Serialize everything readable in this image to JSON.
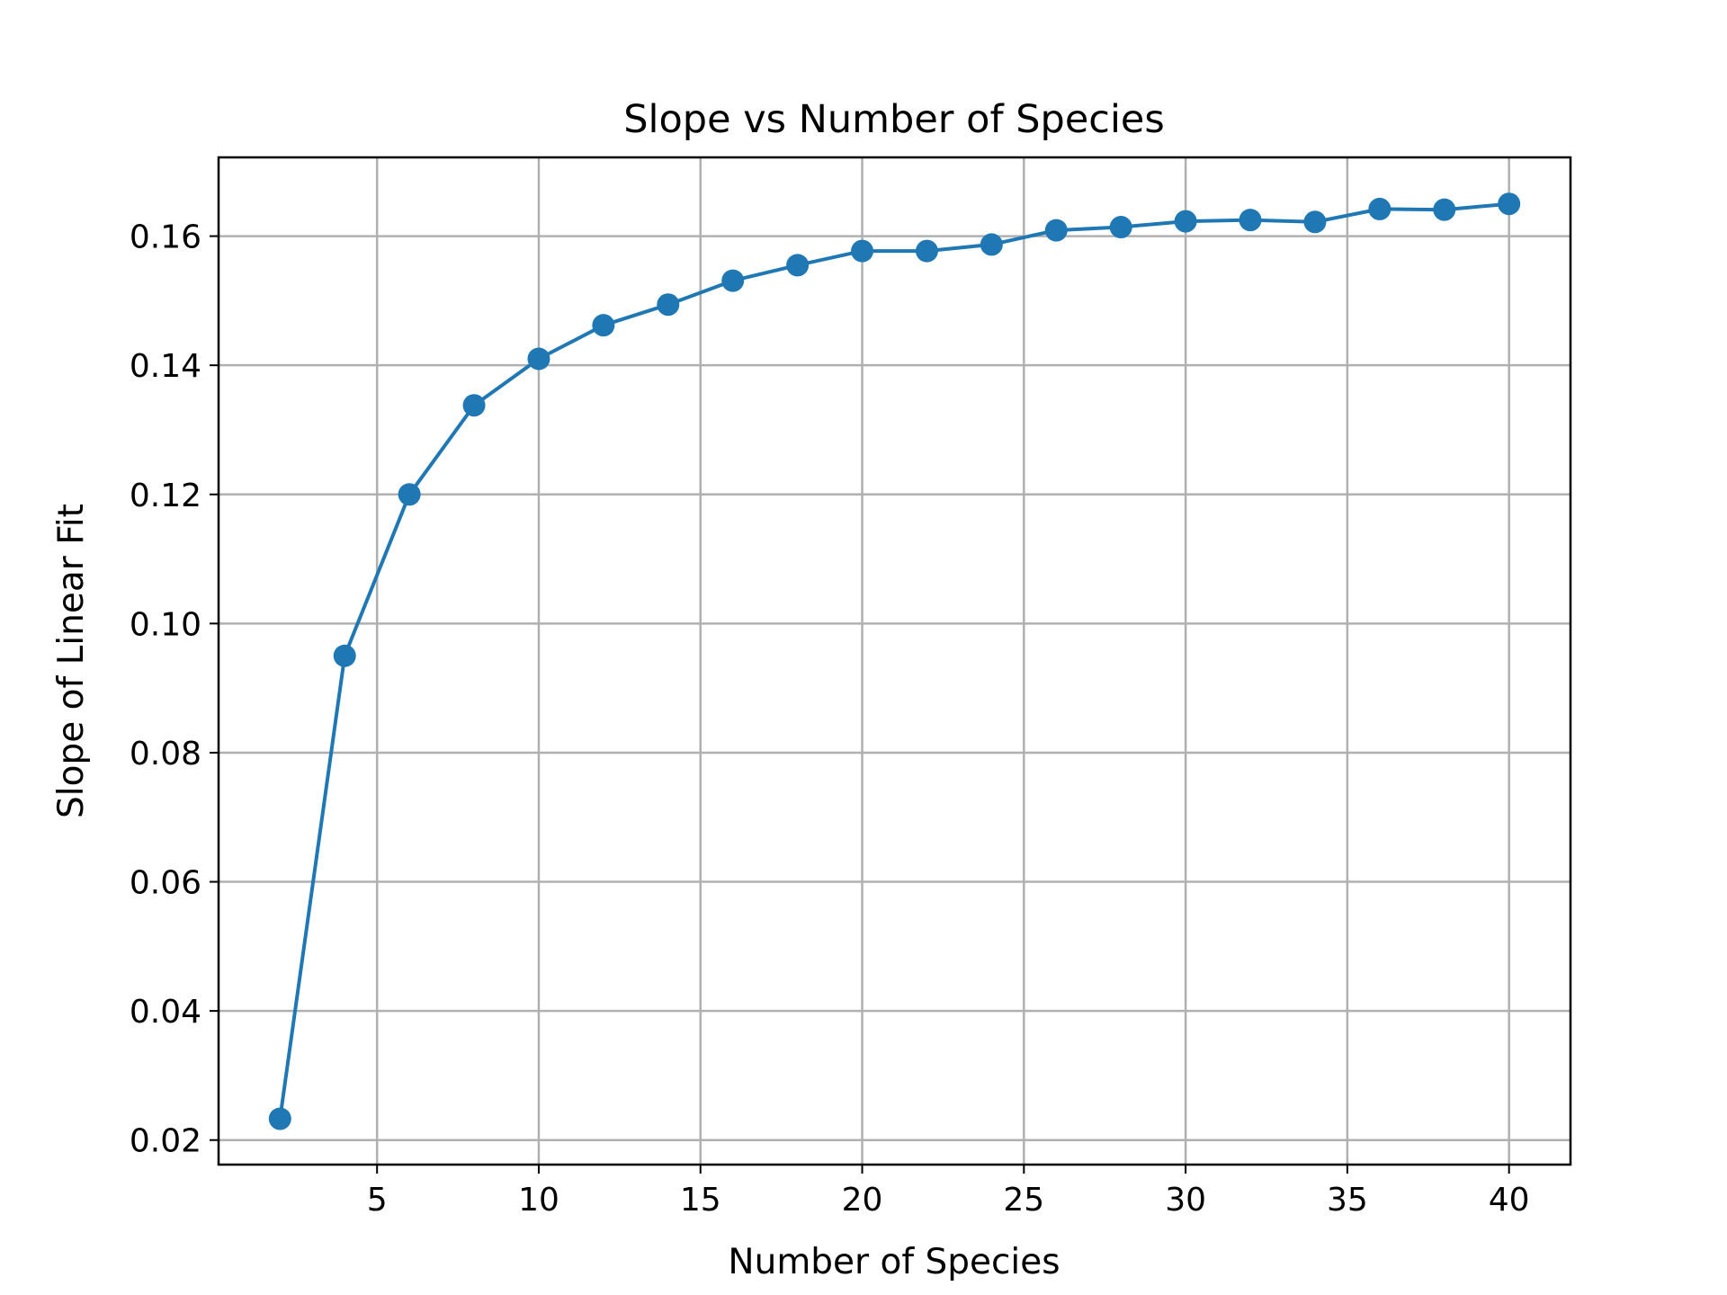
{
  "chart_data": {
    "type": "line",
    "title": "Slope vs Number of Species",
    "xlabel": "Number of Species",
    "ylabel": "Slope of Linear Fit",
    "xlim": [
      0.1,
      41.9
    ],
    "ylim": [
      0.0162,
      0.1722
    ],
    "xticks": [
      5,
      10,
      15,
      20,
      25,
      30,
      35,
      40
    ],
    "xtick_labels": [
      "5",
      "10",
      "15",
      "20",
      "25",
      "30",
      "35",
      "40"
    ],
    "yticks": [
      0.02,
      0.04,
      0.06,
      0.08,
      0.1,
      0.12,
      0.14,
      0.16
    ],
    "ytick_labels": [
      "0.02",
      "0.04",
      "0.06",
      "0.08",
      "0.10",
      "0.12",
      "0.14",
      "0.16"
    ],
    "grid": true,
    "color": "#1f77b4",
    "series": [
      {
        "x": [
          2,
          4,
          6,
          8,
          10,
          12,
          14,
          16,
          18,
          20,
          22,
          24,
          26,
          28,
          30,
          32,
          34,
          36,
          38,
          40
        ],
        "y": [
          0.0233,
          0.095,
          0.12,
          0.1338,
          0.141,
          0.1462,
          0.1494,
          0.1531,
          0.1555,
          0.1577,
          0.1577,
          0.1587,
          0.1609,
          0.1614,
          0.1623,
          0.1625,
          0.1622,
          0.1642,
          0.1641,
          0.165
        ]
      }
    ]
  }
}
